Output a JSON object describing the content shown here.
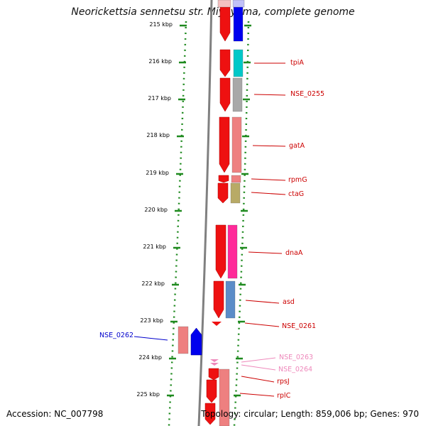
{
  "title": "Neorickettsia sennetsu str. Miyayama, complete genome",
  "footer": {
    "accession": "Accession: NC_007798",
    "topology": "Topology: circular; Length: 859,006 bp; Genes: 970"
  },
  "ticks": [
    "215 kbp",
    "216 kbp",
    "217 kbp",
    "218 kbp",
    "219 kbp",
    "220 kbp",
    "221 kbp",
    "222 kbp",
    "223 kbp",
    "224 kbp",
    "225 kbp"
  ],
  "gene_labels": [
    {
      "text": "tpiA",
      "color": "#cc0000",
      "side": "right"
    },
    {
      "text": "NSE_0255",
      "color": "#cc0000",
      "side": "right"
    },
    {
      "text": "gatA",
      "color": "#cc0000",
      "side": "right"
    },
    {
      "text": "rpmG",
      "color": "#cc0000",
      "side": "right"
    },
    {
      "text": "ctaG",
      "color": "#cc0000",
      "side": "right"
    },
    {
      "text": "dnaA",
      "color": "#cc0000",
      "side": "right"
    },
    {
      "text": "asd",
      "color": "#cc0000",
      "side": "right"
    },
    {
      "text": "NSE_0261",
      "color": "#cc0000",
      "side": "right"
    },
    {
      "text": "NSE_0262",
      "color": "#0000cc",
      "side": "left"
    },
    {
      "text": "NSE_0263",
      "color": "#ee88bb",
      "side": "right"
    },
    {
      "text": "NSE_0264",
      "color": "#ee88bb",
      "side": "right"
    },
    {
      "text": "rpsJ",
      "color": "#cc0000",
      "side": "right"
    },
    {
      "text": "rplC",
      "color": "#cc0000",
      "side": "right"
    }
  ],
  "colors": {
    "gene_red": "#ee1111",
    "tick_green": "#1f8a1f",
    "backbone_gray": "#808080",
    "cog_blue": "#0000ee",
    "cog_cyan": "#00c8c8",
    "cog_gray": "#a8a8a8",
    "cog_salmon": "#ee8080",
    "cog_olive": "#b8aa66",
    "cog_magenta": "#ff2a99",
    "cog_steelblue": "#5b8cc8"
  }
}
